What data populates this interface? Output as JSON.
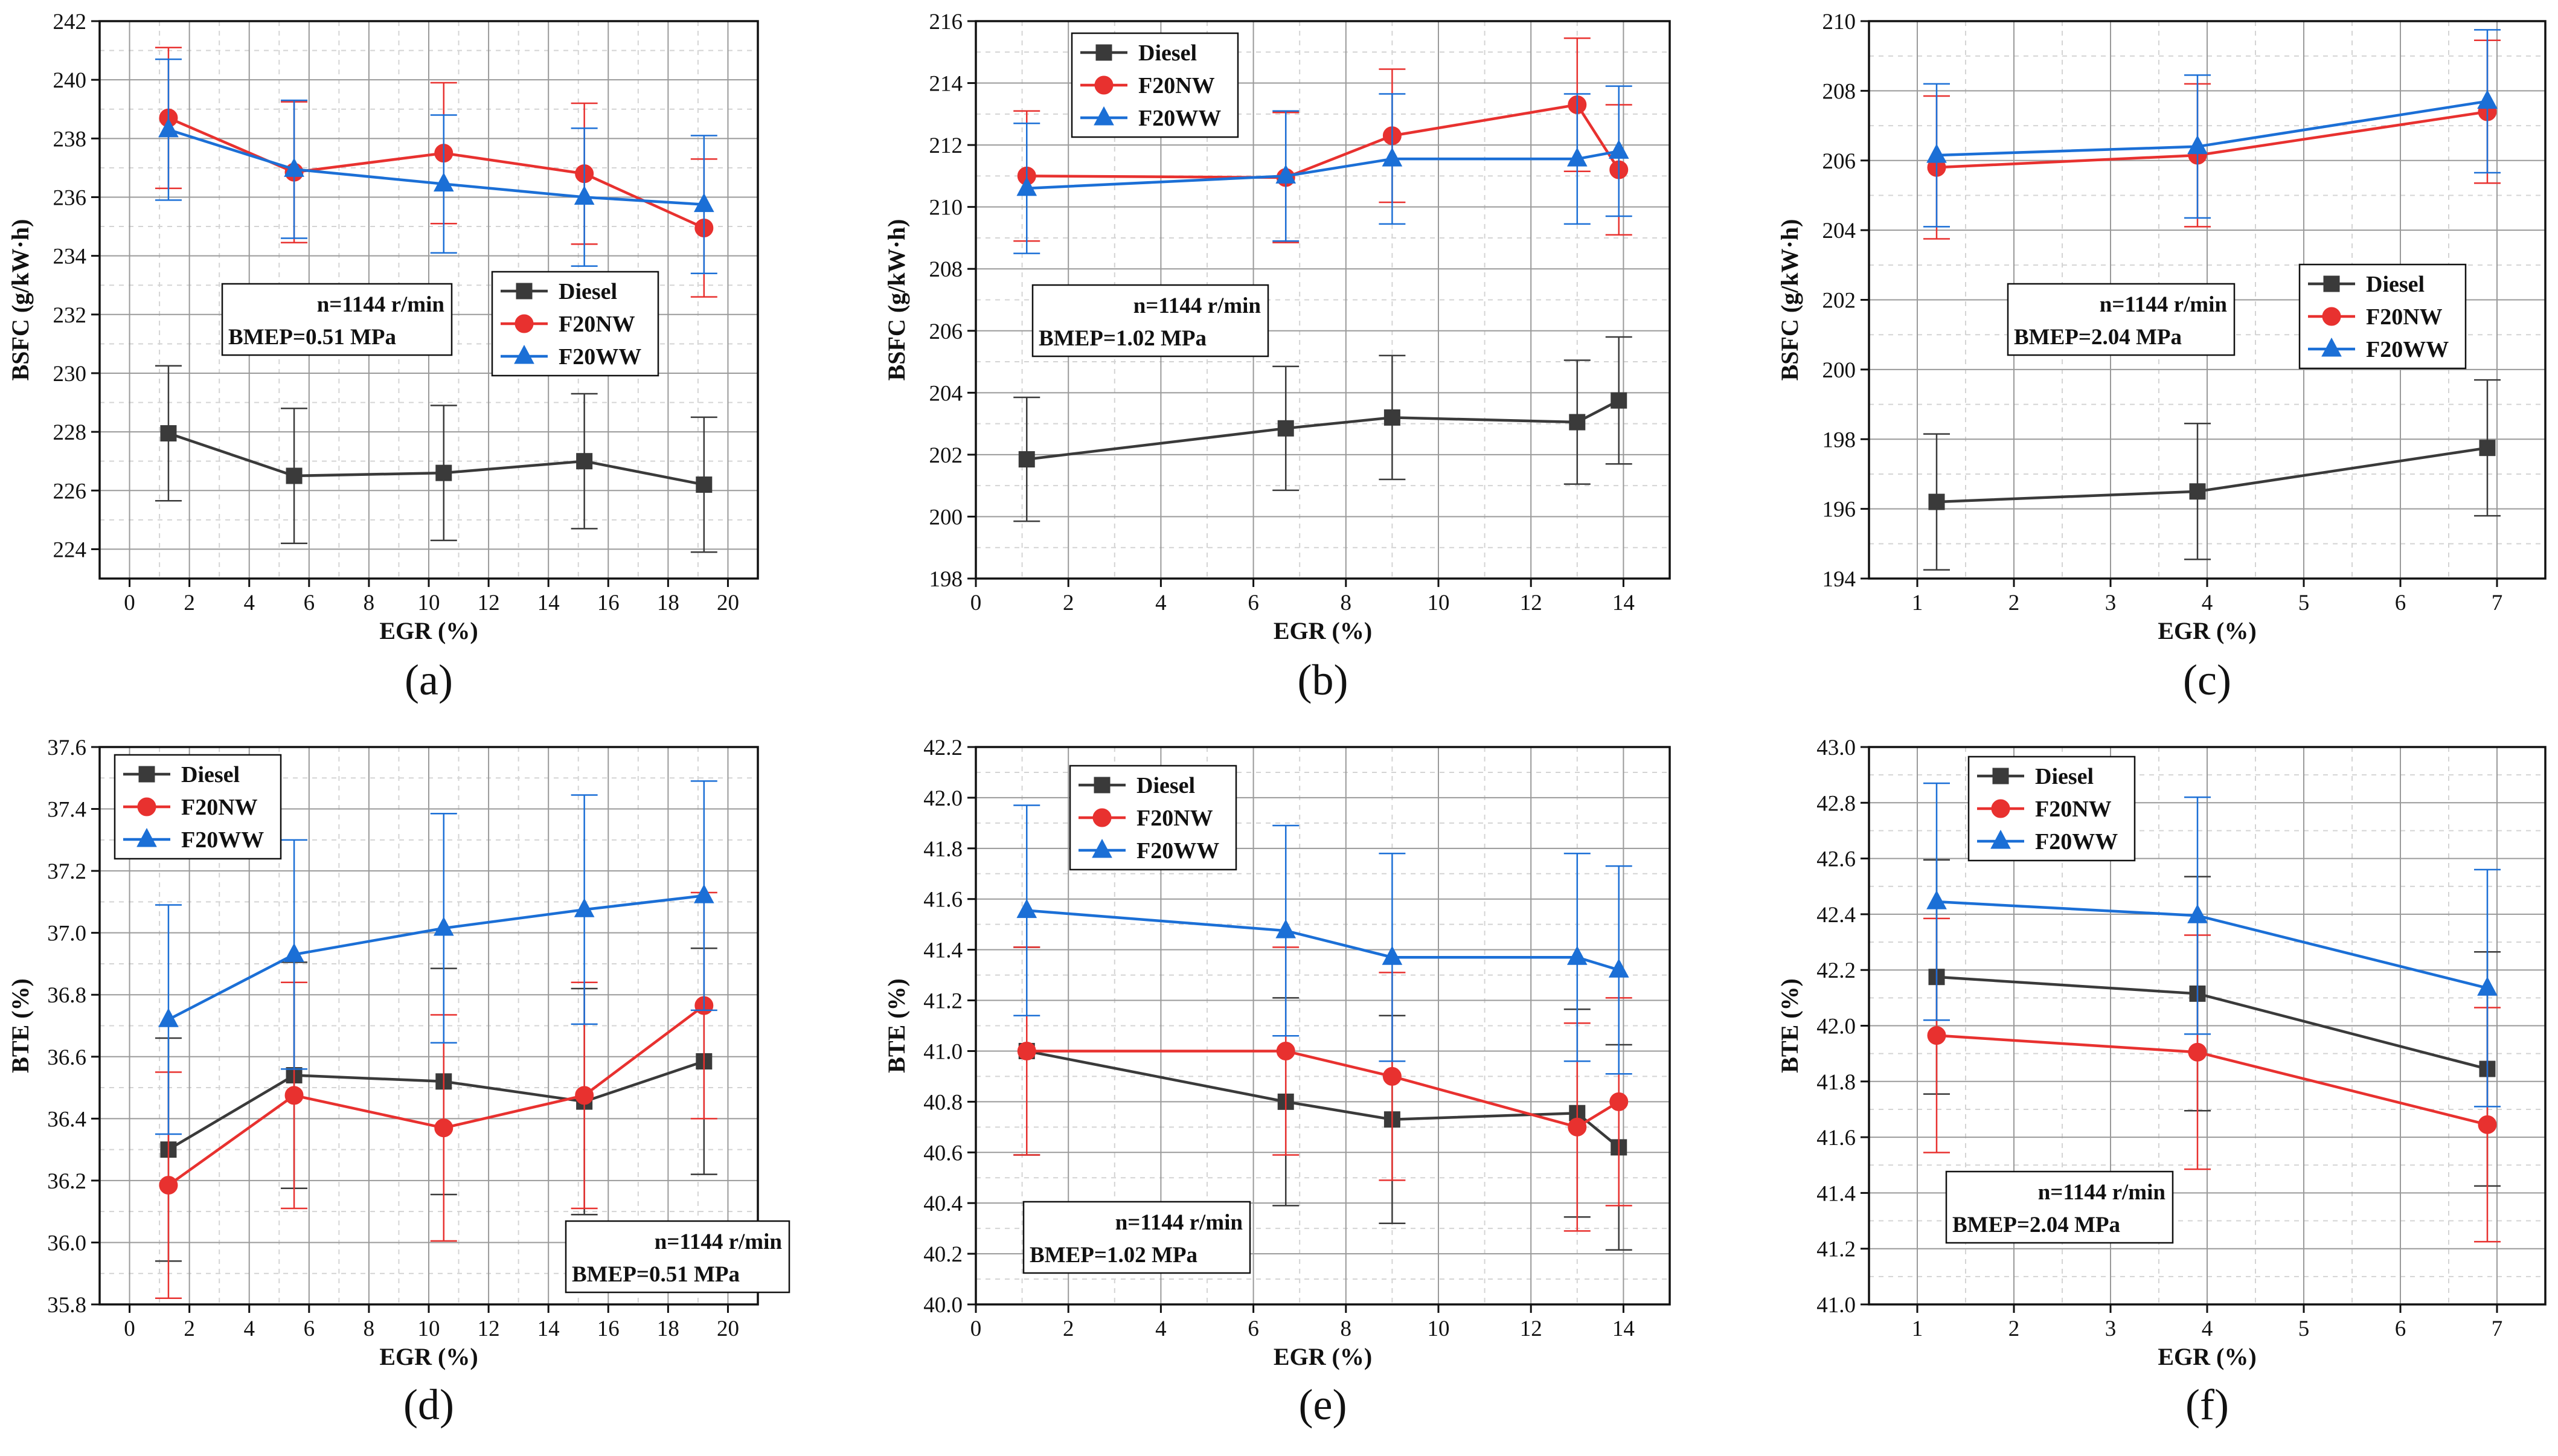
{
  "chart_data": [
    {
      "panel": "(a)",
      "type": "line",
      "xlabel": "EGR (%)",
      "ylabel": "BSFC (g/kW·h)",
      "xlim": [
        -1,
        21
      ],
      "ylim": [
        223,
        242
      ],
      "xticks": [
        0,
        2,
        4,
        6,
        8,
        10,
        12,
        14,
        16,
        18,
        20
      ],
      "yticks": [
        224,
        226,
        228,
        230,
        232,
        234,
        236,
        238,
        240,
        242
      ],
      "grid": true,
      "legend_position": "center-right",
      "annotation": {
        "lines": [
          "n=1144 r/min",
          "BMEP=0.51 MPa"
        ],
        "position": "center-left"
      },
      "series": [
        {
          "name": "Diesel",
          "color": "#3a3a3a",
          "marker": "square",
          "x": [
            1.3,
            5.5,
            10.5,
            15.2,
            19.2
          ],
          "y": [
            227.95,
            226.5,
            226.6,
            227.0,
            226.2
          ],
          "err": [
            2.3,
            2.3,
            2.3,
            2.3,
            2.3
          ]
        },
        {
          "name": "F20NW",
          "color": "#e8312f",
          "marker": "circle",
          "x": [
            1.3,
            5.5,
            10.5,
            15.2,
            19.2
          ],
          "y": [
            238.7,
            236.85,
            237.5,
            236.8,
            234.95
          ],
          "err": [
            2.4,
            2.4,
            2.4,
            2.4,
            2.35
          ]
        },
        {
          "name": "F20WW",
          "color": "#1b6fd6",
          "marker": "triangle",
          "x": [
            1.3,
            5.5,
            10.5,
            15.2,
            19.2
          ],
          "y": [
            238.3,
            236.95,
            236.45,
            236.0,
            235.75
          ],
          "err": [
            2.4,
            2.35,
            2.35,
            2.35,
            2.35
          ]
        }
      ]
    },
    {
      "panel": "(b)",
      "type": "line",
      "xlabel": "EGR (%)",
      "ylabel": "BSFC (g/kW·h)",
      "xlim": [
        0,
        15
      ],
      "ylim": [
        198,
        216
      ],
      "xticks": [
        0,
        2,
        4,
        6,
        8,
        10,
        12,
        14
      ],
      "yticks": [
        198,
        200,
        202,
        204,
        206,
        208,
        210,
        212,
        214,
        216
      ],
      "grid": true,
      "legend_position": "top-left",
      "annotation": {
        "lines": [
          "n=1144 r/min",
          "BMEP=1.02 MPa"
        ],
        "position": "center-left"
      },
      "series": [
        {
          "name": "Diesel",
          "color": "#3a3a3a",
          "marker": "square",
          "x": [
            1.1,
            6.7,
            9.0,
            13.0,
            13.9
          ],
          "y": [
            201.85,
            202.85,
            203.2,
            203.05,
            203.75
          ],
          "err": [
            2.0,
            2.0,
            2.0,
            2.0,
            2.05
          ]
        },
        {
          "name": "F20NW",
          "color": "#e8312f",
          "marker": "circle",
          "x": [
            1.1,
            6.7,
            9.0,
            13.0,
            13.9
          ],
          "y": [
            211.0,
            210.95,
            212.3,
            213.3,
            211.2
          ],
          "err": [
            2.1,
            2.1,
            2.15,
            2.15,
            2.1
          ]
        },
        {
          "name": "F20WW",
          "color": "#1b6fd6",
          "marker": "triangle",
          "x": [
            1.1,
            6.7,
            9.0,
            13.0,
            13.9
          ],
          "y": [
            210.6,
            211.0,
            211.55,
            211.55,
            211.8
          ],
          "err": [
            2.1,
            2.1,
            2.1,
            2.1,
            2.1
          ]
        }
      ]
    },
    {
      "panel": "(c)",
      "type": "line",
      "xlabel": "EGR (%)",
      "ylabel": "BSFC (g/kW·h)",
      "xlim": [
        0.5,
        7.5
      ],
      "ylim": [
        194,
        210
      ],
      "xticks": [
        1,
        2,
        3,
        4,
        5,
        6,
        7
      ],
      "yticks": [
        194,
        196,
        198,
        200,
        202,
        204,
        206,
        208,
        210
      ],
      "grid": true,
      "legend_position": "center-right",
      "annotation": {
        "lines": [
          "n=1144 r/min",
          "BMEP=2.04 MPa"
        ],
        "position": "center"
      },
      "series": [
        {
          "name": "Diesel",
          "color": "#3a3a3a",
          "marker": "square",
          "x": [
            1.2,
            3.9,
            6.9
          ],
          "y": [
            196.2,
            196.5,
            197.75
          ],
          "err": [
            1.95,
            1.95,
            1.95
          ]
        },
        {
          "name": "F20NW",
          "color": "#e8312f",
          "marker": "circle",
          "x": [
            1.2,
            3.9,
            6.9
          ],
          "y": [
            205.8,
            206.15,
            207.4
          ],
          "err": [
            2.05,
            2.05,
            2.05
          ]
        },
        {
          "name": "F20WW",
          "color": "#1b6fd6",
          "marker": "triangle",
          "x": [
            1.2,
            3.9,
            6.9
          ],
          "y": [
            206.15,
            206.4,
            207.7
          ],
          "err": [
            2.05,
            2.05,
            2.05
          ]
        }
      ]
    },
    {
      "panel": "(d)",
      "type": "line",
      "xlabel": "EGR (%)",
      "ylabel": "BTE (%)",
      "xlim": [
        -1,
        21
      ],
      "ylim": [
        35.8,
        37.6
      ],
      "xticks": [
        0,
        2,
        4,
        6,
        8,
        10,
        12,
        14,
        16,
        18,
        20
      ],
      "yticks": [
        35.8,
        36.0,
        36.2,
        36.4,
        36.6,
        36.8,
        37.0,
        37.2,
        37.4,
        37.6
      ],
      "grid": true,
      "legend_position": "top-left",
      "annotation": {
        "lines": [
          "n=1144 r/min",
          "BMEP=0.51 MPa"
        ],
        "position": "bottom-right"
      },
      "series": [
        {
          "name": "Diesel",
          "color": "#3a3a3a",
          "marker": "square",
          "x": [
            1.3,
            5.5,
            10.5,
            15.2,
            19.2
          ],
          "y": [
            36.3,
            36.54,
            36.52,
            36.455,
            36.585
          ],
          "err": [
            0.36,
            0.365,
            0.365,
            0.365,
            0.365
          ]
        },
        {
          "name": "F20NW",
          "color": "#e8312f",
          "marker": "circle",
          "x": [
            1.3,
            5.5,
            10.5,
            15.2,
            19.2
          ],
          "y": [
            36.185,
            36.475,
            36.37,
            36.475,
            36.765
          ],
          "err": [
            0.365,
            0.365,
            0.365,
            0.365,
            0.365
          ]
        },
        {
          "name": "F20WW",
          "color": "#1b6fd6",
          "marker": "triangle",
          "x": [
            1.3,
            5.5,
            10.5,
            15.2,
            19.2
          ],
          "y": [
            36.72,
            36.93,
            37.015,
            37.075,
            37.12
          ],
          "err": [
            0.37,
            0.37,
            0.37,
            0.37,
            0.37
          ]
        }
      ]
    },
    {
      "panel": "(e)",
      "type": "line",
      "xlabel": "EGR (%)",
      "ylabel": "BTE (%)",
      "xlim": [
        0,
        15
      ],
      "ylim": [
        40.0,
        42.2
      ],
      "xticks": [
        0,
        2,
        4,
        6,
        8,
        10,
        12,
        14
      ],
      "yticks": [
        40.0,
        40.2,
        40.4,
        40.6,
        40.8,
        41.0,
        41.2,
        41.4,
        41.6,
        41.8,
        42.0,
        42.2
      ],
      "grid": true,
      "legend_position": "top-left",
      "annotation": {
        "lines": [
          "n=1144 r/min",
          "BMEP=1.02 MPa"
        ],
        "position": "bottom-left"
      },
      "series": [
        {
          "name": "Diesel",
          "color": "#3a3a3a",
          "marker": "square",
          "x": [
            1.1,
            6.7,
            9.0,
            13.0,
            13.9
          ],
          "y": [
            41.0,
            40.8,
            40.73,
            40.755,
            40.62
          ],
          "err": [
            0.41,
            0.41,
            0.41,
            0.41,
            0.405
          ]
        },
        {
          "name": "F20NW",
          "color": "#e8312f",
          "marker": "circle",
          "x": [
            1.1,
            6.7,
            9.0,
            13.0,
            13.9
          ],
          "y": [
            41.0,
            41.0,
            40.9,
            40.7,
            40.8
          ],
          "err": [
            0.41,
            0.41,
            0.41,
            0.41,
            0.41
          ]
        },
        {
          "name": "F20WW",
          "color": "#1b6fd6",
          "marker": "triangle",
          "x": [
            1.1,
            6.7,
            9.0,
            13.0,
            13.9
          ],
          "y": [
            41.555,
            41.475,
            41.37,
            41.37,
            41.32
          ],
          "err": [
            0.415,
            0.415,
            0.41,
            0.41,
            0.41
          ]
        }
      ]
    },
    {
      "panel": "(f)",
      "type": "line",
      "xlabel": "EGR (%)",
      "ylabel": "BTE (%)",
      "xlim": [
        0.5,
        7.5
      ],
      "ylim": [
        41.0,
        43.0
      ],
      "xticks": [
        1,
        2,
        3,
        4,
        5,
        6,
        7
      ],
      "yticks": [
        41.0,
        41.2,
        41.4,
        41.6,
        41.8,
        42.0,
        42.2,
        42.4,
        42.6,
        42.8,
        43.0
      ],
      "grid": true,
      "legend_position": "top-center",
      "annotation": {
        "lines": [
          "n=1144 r/min",
          "BMEP=2.04 MPa"
        ],
        "position": "bottom-center"
      },
      "series": [
        {
          "name": "Diesel",
          "color": "#3a3a3a",
          "marker": "square",
          "x": [
            1.2,
            3.9,
            6.9
          ],
          "y": [
            42.175,
            42.115,
            41.845
          ],
          "err": [
            0.42,
            0.42,
            0.42
          ]
        },
        {
          "name": "F20NW",
          "color": "#e8312f",
          "marker": "circle",
          "x": [
            1.2,
            3.9,
            6.9
          ],
          "y": [
            41.965,
            41.905,
            41.645
          ],
          "err": [
            0.42,
            0.42,
            0.42
          ]
        },
        {
          "name": "F20WW",
          "color": "#1b6fd6",
          "marker": "triangle",
          "x": [
            1.2,
            3.9,
            6.9
          ],
          "y": [
            42.445,
            42.395,
            42.135
          ],
          "err": [
            0.425,
            0.425,
            0.425
          ]
        }
      ]
    }
  ]
}
